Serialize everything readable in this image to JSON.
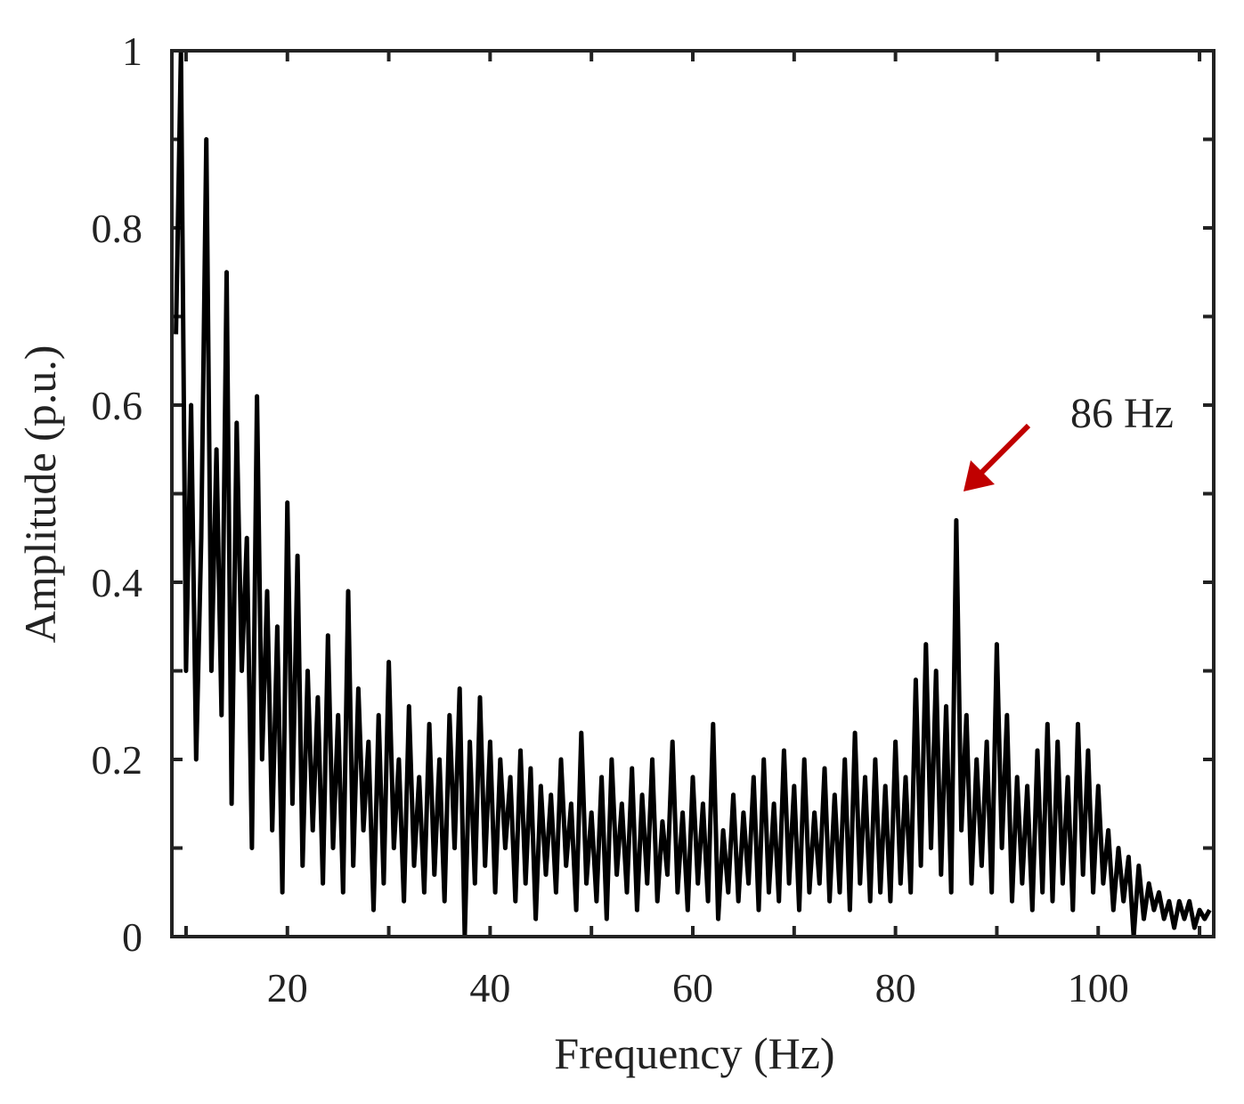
{
  "chart_data": {
    "type": "line",
    "xlabel": "Frequency (Hz)",
    "ylabel": "Amplitude (p.u.)",
    "annotation": "86 Hz",
    "annotation_color": "#c00000",
    "xlim": [
      8.6,
      111.4
    ],
    "ylim": [
      0,
      1
    ],
    "xticks": [
      20,
      40,
      60,
      80,
      100
    ],
    "x_minor_ticks": [
      10,
      30,
      50,
      70,
      90,
      110
    ],
    "yticks": [
      0,
      0.2,
      0.4,
      0.6,
      0.8,
      1
    ],
    "y_minor_ticks": [
      0.1,
      0.3,
      0.5,
      0.7,
      0.9
    ],
    "x": [
      9,
      9.5,
      10,
      10.5,
      11,
      11.5,
      12,
      12.5,
      13,
      13.5,
      14,
      14.5,
      15,
      15.5,
      16,
      16.5,
      17,
      17.5,
      18,
      18.5,
      19,
      19.5,
      20,
      20.5,
      21,
      21.5,
      22,
      22.5,
      23,
      23.5,
      24,
      24.5,
      25,
      25.5,
      26,
      26.5,
      27,
      27.5,
      28,
      28.5,
      29,
      29.5,
      30,
      30.5,
      31,
      31.5,
      32,
      32.5,
      33,
      33.5,
      34,
      34.5,
      35,
      35.5,
      36,
      36.5,
      37,
      37.5,
      38,
      38.5,
      39,
      39.5,
      40,
      40.5,
      41,
      41.5,
      42,
      42.5,
      43,
      43.5,
      44,
      44.5,
      45,
      45.5,
      46,
      46.5,
      47,
      47.5,
      48,
      48.5,
      49,
      49.5,
      50,
      50.5,
      51,
      51.5,
      52,
      52.5,
      53,
      53.5,
      54,
      54.5,
      55,
      55.5,
      56,
      56.5,
      57,
      57.5,
      58,
      58.5,
      59,
      59.5,
      60,
      60.5,
      61,
      61.5,
      62,
      62.5,
      63,
      63.5,
      64,
      64.5,
      65,
      65.5,
      66,
      66.5,
      67,
      67.5,
      68,
      68.5,
      69,
      69.5,
      70,
      70.5,
      71,
      71.5,
      72,
      72.5,
      73,
      73.5,
      74,
      74.5,
      75,
      75.5,
      76,
      76.5,
      77,
      77.5,
      78,
      78.5,
      79,
      79.5,
      80,
      80.5,
      81,
      81.5,
      82,
      82.5,
      83,
      83.5,
      84,
      84.5,
      85,
      85.5,
      86,
      86.5,
      87,
      87.5,
      88,
      88.5,
      89,
      89.5,
      90,
      90.5,
      91,
      91.5,
      92,
      92.5,
      93,
      93.5,
      94,
      94.5,
      95,
      95.5,
      96,
      96.5,
      97,
      97.5,
      98,
      98.5,
      99,
      99.5,
      100,
      100.5,
      101,
      101.5,
      102,
      102.5,
      103,
      103.5,
      104,
      104.5,
      105,
      105.5,
      106,
      106.5,
      107,
      107.5,
      108,
      108.5,
      109,
      109.5,
      110,
      110.5,
      111
    ],
    "series": [
      {
        "color": "#000000",
        "values": [
          0.68,
          1.0,
          0.3,
          0.6,
          0.2,
          0.45,
          0.9,
          0.3,
          0.55,
          0.25,
          0.75,
          0.15,
          0.58,
          0.3,
          0.45,
          0.1,
          0.61,
          0.2,
          0.39,
          0.12,
          0.35,
          0.05,
          0.49,
          0.15,
          0.43,
          0.08,
          0.3,
          0.12,
          0.27,
          0.06,
          0.34,
          0.1,
          0.25,
          0.05,
          0.39,
          0.08,
          0.28,
          0.12,
          0.22,
          0.03,
          0.25,
          0.06,
          0.31,
          0.1,
          0.2,
          0.04,
          0.26,
          0.08,
          0.18,
          0.05,
          0.24,
          0.07,
          0.2,
          0.04,
          0.25,
          0.1,
          0.28,
          0.0,
          0.22,
          0.06,
          0.27,
          0.08,
          0.22,
          0.05,
          0.2,
          0.1,
          0.18,
          0.04,
          0.21,
          0.06,
          0.19,
          0.02,
          0.17,
          0.07,
          0.16,
          0.05,
          0.2,
          0.08,
          0.15,
          0.03,
          0.23,
          0.06,
          0.14,
          0.04,
          0.18,
          0.02,
          0.2,
          0.07,
          0.15,
          0.05,
          0.19,
          0.03,
          0.16,
          0.06,
          0.2,
          0.04,
          0.13,
          0.07,
          0.22,
          0.05,
          0.14,
          0.03,
          0.18,
          0.06,
          0.15,
          0.04,
          0.24,
          0.02,
          0.12,
          0.05,
          0.16,
          0.04,
          0.14,
          0.06,
          0.18,
          0.03,
          0.2,
          0.05,
          0.15,
          0.04,
          0.21,
          0.06,
          0.17,
          0.03,
          0.2,
          0.05,
          0.14,
          0.06,
          0.19,
          0.04,
          0.16,
          0.05,
          0.2,
          0.03,
          0.23,
          0.06,
          0.18,
          0.04,
          0.2,
          0.05,
          0.17,
          0.04,
          0.22,
          0.06,
          0.18,
          0.05,
          0.29,
          0.08,
          0.33,
          0.1,
          0.3,
          0.07,
          0.26,
          0.05,
          0.47,
          0.12,
          0.25,
          0.06,
          0.2,
          0.08,
          0.22,
          0.05,
          0.33,
          0.1,
          0.25,
          0.04,
          0.18,
          0.06,
          0.17,
          0.03,
          0.21,
          0.05,
          0.24,
          0.04,
          0.22,
          0.06,
          0.18,
          0.03,
          0.24,
          0.07,
          0.21,
          0.05,
          0.17,
          0.06,
          0.12,
          0.03,
          0.1,
          0.04,
          0.09,
          0.0,
          0.08,
          0.02,
          0.06,
          0.03,
          0.05,
          0.02,
          0.04,
          0.01,
          0.04,
          0.02,
          0.04,
          0.01,
          0.03,
          0.02,
          0.03
        ]
      }
    ]
  }
}
